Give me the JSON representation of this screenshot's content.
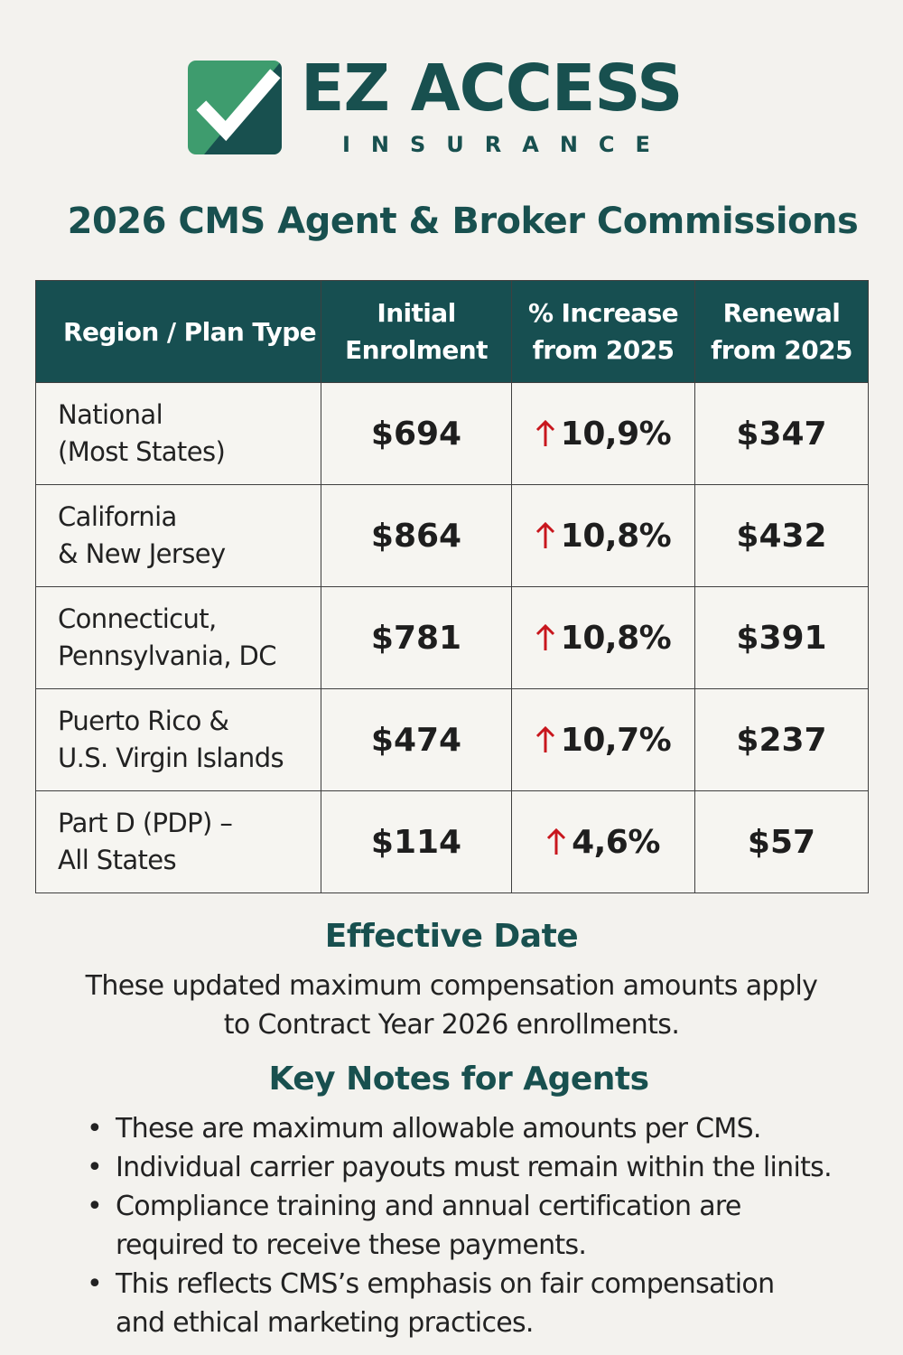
{
  "brand": {
    "name": "EZ ACCESS",
    "subtitle": "INSURANCE",
    "icon": "checkmark-icon",
    "colors": {
      "primary": "#18504f",
      "icon_light": "#3e9c6e",
      "icon_dark": "#18504f",
      "arrow": "#c8161d"
    }
  },
  "title": "2026 CMS Agent & Broker Commissions",
  "table": {
    "headers": {
      "region": "Region / Plan Type",
      "initial_1": "Initial",
      "initial_2": "Enrolment",
      "increase_1": "% Increase",
      "increase_2": "from 2025",
      "renewal_1": "Renewal",
      "renewal_2": "from 2025"
    },
    "rows": [
      {
        "region_1": "National",
        "region_2": "(Most States)",
        "initial": "$694",
        "increase": "10,9%",
        "renewal": "$347"
      },
      {
        "region_1": "California",
        "region_2": "& New Jersey",
        "initial": "$864",
        "increase": "10,8%",
        "renewal": "$432"
      },
      {
        "region_1": "Connecticut,",
        "region_2": "Pennsylvania, DC",
        "initial": "$781",
        "increase": "10,8%",
        "renewal": "$391"
      },
      {
        "region_1": "Puerto Rico &",
        "region_2": "U.S. Virgin Islands",
        "initial": "$474",
        "increase": "10,7%",
        "renewal": "$237"
      },
      {
        "region_1": "Part D (PDP) –",
        "region_2": "All States",
        "initial": "$114",
        "increase": "4,6%",
        "renewal": "$57"
      }
    ]
  },
  "effective": {
    "heading": "Effective Date",
    "line_1": "These updated maximum compensation amounts apply",
    "line_2": "to Contract Year 2026 enrollments."
  },
  "notes": {
    "heading": "Key Notes for Agents",
    "items": [
      {
        "line_1": "These are maximum allowable amounts per CMS.",
        "line_2": ""
      },
      {
        "line_1": "Individual carrier payouts must remain within the linits.",
        "line_2": ""
      },
      {
        "line_1": "Compliance training and annual certification are",
        "line_2": "required to receive these payments."
      },
      {
        "line_1": "This reflects CMS’s emphasis on fair compensation",
        "line_2": "and ethical marketing practices."
      }
    ]
  }
}
